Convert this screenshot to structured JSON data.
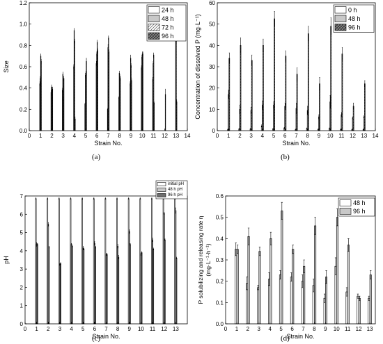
{
  "chart_data": [
    {
      "panel": "(a)",
      "type": "bar",
      "ylabel": "Size",
      "xlabel": "Strain No.",
      "ylim": [
        0,
        1.2
      ],
      "yticks": [
        "0.0",
        "0.2",
        "0.4",
        "0.6",
        "0.8",
        "1.0",
        "1.2"
      ],
      "xlim": [
        0,
        14
      ],
      "xticks": [
        "0",
        "1",
        "2",
        "3",
        "4",
        "5",
        "6",
        "7",
        "8",
        "9",
        "10",
        "11",
        "12",
        "13",
        "14"
      ],
      "categories": [
        "1",
        "2",
        "3",
        "4",
        "5",
        "6",
        "7",
        "8",
        "9",
        "10",
        "11",
        "12",
        "13"
      ],
      "legend_position": "top-right",
      "series": [
        {
          "name": "24 h",
          "pattern": "blank",
          "values": [
            0.44,
            0.36,
            0.38,
            0.6,
            0.25,
            0.63,
            0.2,
            0.31,
            0.44,
            0.59,
            0.48,
            0.0,
            0.0
          ],
          "errors": [
            0.02,
            0.02,
            0.02,
            0.02,
            0.01,
            0.02,
            0.01,
            0.01,
            0.02,
            0.02,
            0.02,
            0,
            0
          ]
        },
        {
          "name": "48 h",
          "pattern": "gray",
          "values": [
            0.49,
            0.41,
            0.53,
            0.94,
            0.52,
            0.72,
            0.78,
            0.54,
            0.68,
            0.69,
            0.63,
            0.0,
            0.86
          ],
          "errors": [
            0.02,
            0.02,
            0.02,
            0.02,
            0.02,
            0.02,
            0.03,
            0.02,
            0.03,
            0.02,
            0.02,
            0,
            0.02
          ]
        },
        {
          "name": "72 h",
          "pattern": "hatch",
          "values": [
            0.7,
            0.39,
            0.3,
            0.84,
            0.54,
            0.83,
            0.87,
            0.51,
            0.61,
            0.72,
            0.71,
            0.0,
            0.85
          ],
          "errors": [
            0.02,
            0.02,
            0.02,
            0.02,
            0.02,
            0.02,
            0.02,
            0.02,
            0.02,
            0.02,
            0.02,
            0,
            0.02
          ]
        },
        {
          "name": "96 h",
          "pattern": "crosshatch",
          "values": [
            0.65,
            0.39,
            0.49,
            0.11,
            0.65,
            0.75,
            0.74,
            0.49,
            0.47,
            0.72,
            0.26,
            0.34,
            0.27
          ],
          "errors": [
            0.02,
            0.02,
            0.02,
            0.02,
            0.03,
            0.02,
            0.02,
            0.02,
            0.02,
            0.02,
            0.01,
            0.05,
            0.02
          ]
        }
      ]
    },
    {
      "panel": "(b)",
      "type": "bar",
      "ylabel": "Concentration of dissolved P  (mg·L⁻¹)",
      "xlabel": "Strain No.",
      "ylim": [
        0,
        60
      ],
      "yticks": [
        "0",
        "10",
        "20",
        "30",
        "40",
        "50",
        "60"
      ],
      "xlim": [
        0,
        14
      ],
      "xticks": [
        "0",
        "1",
        "2",
        "3",
        "4",
        "5",
        "6",
        "7",
        "8",
        "9",
        "10",
        "11",
        "12",
        "13",
        "14"
      ],
      "categories": [
        "1",
        "2",
        "3",
        "4",
        "5",
        "6",
        "7",
        "8",
        "9",
        "10",
        "11",
        "12",
        "13"
      ],
      "legend_position": "top-right",
      "series": [
        {
          "name": "0 h",
          "pattern": "blank",
          "values": [
            0.5,
            0.8,
            0.8,
            2.2,
            0.8,
            1.2,
            0.5,
            1.0,
            0.6,
            1.0,
            0.6,
            0.5,
            0.5
          ],
          "errors": [
            0.2,
            0.2,
            0.2,
            0.5,
            0.2,
            0.3,
            0.2,
            0.3,
            0.2,
            0.3,
            0.2,
            0.2,
            0.2
          ]
        },
        {
          "name": "48 h",
          "pattern": "gray",
          "values": [
            17,
            10,
            9.5,
            12,
            12,
            11.5,
            10.5,
            9.5,
            6.5,
            13.5,
            7.5,
            6,
            6.5
          ],
          "errors": [
            2,
            2,
            1.5,
            2,
            1.5,
            1.5,
            2.5,
            2,
            1,
            3,
            1,
            0.5,
            0.5
          ]
        },
        {
          "name": "96 h",
          "pattern": "crosshatch",
          "values": [
            34,
            40,
            33,
            40,
            52.5,
            35,
            26.5,
            45.5,
            22,
            49,
            36,
            11.5,
            22
          ],
          "errors": [
            2.5,
            3.5,
            2.5,
            3,
            3.5,
            2.5,
            3,
            3.5,
            3,
            4,
            3,
            1.5,
            1.5
          ]
        }
      ]
    },
    {
      "panel": "(c)",
      "type": "bar",
      "ylabel": "pH",
      "xlabel": "Strain No.",
      "ylim": [
        0,
        7
      ],
      "yticks": [
        "0",
        "1",
        "2",
        "3",
        "4",
        "5",
        "6",
        "7"
      ],
      "xlim": [
        0,
        14
      ],
      "xticks": [
        "0",
        "1",
        "2",
        "3",
        "4",
        "5",
        "6",
        "7",
        "8",
        "9",
        "10",
        "11",
        "12",
        "13"
      ],
      "categories": [
        "1",
        "2",
        "3",
        "4",
        "5",
        "6",
        "7",
        "8",
        "9",
        "10",
        "11",
        "12",
        "13"
      ],
      "legend_position": "top-right",
      "series": [
        {
          "name": "initial pH",
          "pattern": "blank",
          "values": [
            6.86,
            6.86,
            6.86,
            6.86,
            6.86,
            6.86,
            6.86,
            6.86,
            6.86,
            6.86,
            6.86,
            6.86,
            6.86
          ],
          "errors": [
            0.04,
            0.04,
            0.04,
            0.04,
            0.04,
            0.04,
            0.04,
            0.04,
            0.04,
            0.04,
            0.04,
            0.04,
            0.04
          ]
        },
        {
          "name": "48 h pH",
          "pattern": "gray",
          "values": [
            4.35,
            5.45,
            3.25,
            4.35,
            4.15,
            4.4,
            3.8,
            4.25,
            5.05,
            3.8,
            4.6,
            6.05,
            6.2
          ],
          "errors": [
            0.1,
            0.1,
            0.05,
            0.05,
            0.1,
            0.1,
            0.05,
            0.1,
            0.1,
            0.05,
            0.1,
            0.05,
            0.15
          ]
        },
        {
          "name": "96 h pH",
          "pattern": "dark",
          "values": [
            4.35,
            4.2,
            3.3,
            4.25,
            4.1,
            4.2,
            3.8,
            3.65,
            4.35,
            3.9,
            4.1,
            4.6,
            3.6
          ],
          "errors": [
            0.05,
            0.05,
            0.05,
            0.05,
            0.05,
            0.05,
            0.05,
            0.1,
            0.05,
            0.05,
            0.05,
            0.05,
            0.05
          ]
        }
      ]
    },
    {
      "panel": "(d)",
      "type": "bar",
      "ylabel": "P solubilizing and releasing rate η",
      "ylabel_unit": "(mg·L⁻¹·h⁻¹)",
      "xlabel": "Strain No.",
      "ylim": [
        0,
        0.6
      ],
      "yticks": [
        "0.0",
        "0.1",
        "0.2",
        "0.3",
        "0.4",
        "0.5",
        "0.6"
      ],
      "xlim": [
        0,
        13.5
      ],
      "xticks": [
        "0",
        "1",
        "2",
        "3",
        "4",
        "5",
        "6",
        "7",
        "8",
        "9",
        "10",
        "11",
        "12",
        "13"
      ],
      "categories": [
        "1",
        "2",
        "3",
        "4",
        "5",
        "6",
        "7",
        "8",
        "9",
        "10",
        "11",
        "12",
        "13"
      ],
      "legend_position": "top-right",
      "series": [
        {
          "name": "48 h",
          "pattern": "blank",
          "values": [
            0.35,
            0.19,
            0.17,
            0.21,
            0.23,
            0.22,
            0.2,
            0.18,
            0.12,
            0.27,
            0.15,
            0.13,
            0.12
          ],
          "errors": [
            0.03,
            0.03,
            0.01,
            0.03,
            0.02,
            0.02,
            0.03,
            0.03,
            0.02,
            0.04,
            0.02,
            0.01,
            0.01
          ]
        },
        {
          "name": "96 h",
          "pattern": "gray",
          "values": [
            0.35,
            0.41,
            0.34,
            0.4,
            0.53,
            0.35,
            0.27,
            0.46,
            0.22,
            0.5,
            0.37,
            0.12,
            0.23
          ],
          "errors": [
            0.02,
            0.04,
            0.02,
            0.03,
            0.04,
            0.02,
            0.03,
            0.04,
            0.03,
            0.04,
            0.03,
            0.01,
            0.02
          ]
        }
      ]
    }
  ]
}
